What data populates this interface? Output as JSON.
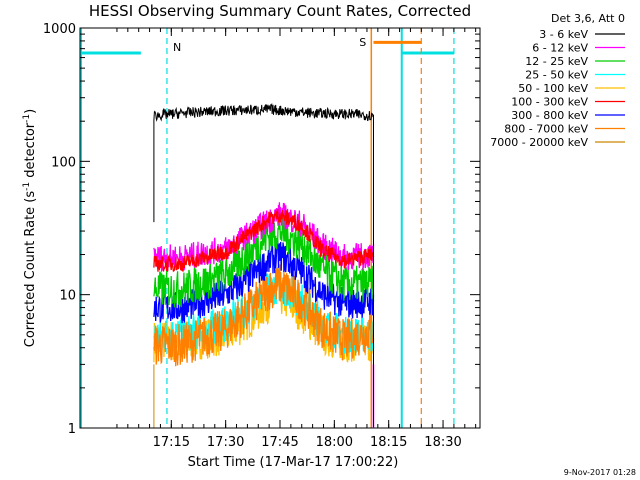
{
  "chart_data": {
    "type": "line",
    "title": "HESSI Observing Summary Count Rates, Corrected",
    "xlabel": "Start Time (17-Mar-17 17:00:22)",
    "ylabel_main": "Corrected Count Rate (s",
    "ylabel_sup1": "-1",
    "ylabel_mid": " detector",
    "ylabel_sup2": "-1",
    "ylabel_end": ")",
    "xlim": [
      16.83,
      18.67
    ],
    "ylim": [
      1,
      1000
    ],
    "yscale": "log",
    "x_ticks": [
      {
        "v": 17.25,
        "label": "17:15"
      },
      {
        "v": 17.5,
        "label": "17:30"
      },
      {
        "v": 17.75,
        "label": "17:45"
      },
      {
        "v": 18.0,
        "label": "18:00"
      },
      {
        "v": 18.25,
        "label": "18:15"
      },
      {
        "v": 18.5,
        "label": "18:30"
      }
    ],
    "y_ticks": [
      {
        "v": 1,
        "label": "1"
      },
      {
        "v": 10,
        "label": "10"
      },
      {
        "v": 100,
        "label": "100"
      },
      {
        "v": 1000,
        "label": "1000"
      }
    ],
    "legend_header": "Det 3,6, Att 0",
    "legend_position": "top-right",
    "series": [
      {
        "name": "3 - 6 keV",
        "color": "#000000",
        "x": [
          17.17,
          17.17,
          17.3,
          17.5,
          17.7,
          17.9,
          18.1,
          18.18
        ],
        "values": [
          35,
          220,
          230,
          240,
          245,
          230,
          225,
          220
        ],
        "noise": 0.04
      },
      {
        "name": "6 - 12 keV",
        "color": "#ff00ff",
        "x": [
          17.17,
          17.3,
          17.5,
          17.6,
          17.7,
          17.75,
          17.85,
          17.95,
          18.05,
          18.18
        ],
        "values": [
          19,
          19,
          22,
          28,
          36,
          40,
          34,
          23,
          19,
          20
        ],
        "noise": 0.1
      },
      {
        "name": "12 - 25 keV",
        "color": "#00cc00",
        "x": [
          17.17,
          17.3,
          17.5,
          17.6,
          17.7,
          17.75,
          17.85,
          17.95,
          18.05,
          18.18
        ],
        "values": [
          11,
          11,
          14,
          20,
          28,
          30,
          24,
          15,
          12,
          12
        ],
        "noise": 0.14
      },
      {
        "name": "25 - 50 keV",
        "color": "#00ffff",
        "x": [
          17.17,
          17.3,
          17.5,
          17.6,
          17.7,
          17.75,
          17.85,
          17.95,
          18.05,
          18.18
        ],
        "values": [
          5,
          5,
          6,
          8,
          11,
          12,
          9,
          6,
          5,
          5
        ],
        "noise": 0.14
      },
      {
        "name": "50 - 100 keV",
        "color": "#ffbf00",
        "x": [
          17.17,
          17.3,
          17.5,
          17.6,
          17.7,
          17.75,
          17.85,
          17.95,
          18.05,
          18.18
        ],
        "values": [
          4.5,
          4.5,
          5,
          6.5,
          9,
          10,
          7.5,
          5,
          4.5,
          4.5
        ],
        "noise": 0.16
      },
      {
        "name": "100 - 300 keV",
        "color": "#ff0000",
        "x": [
          17.17,
          17.3,
          17.5,
          17.6,
          17.7,
          17.75,
          17.85,
          17.95,
          18.05,
          18.18
        ],
        "values": [
          17,
          17,
          21,
          28,
          37,
          40,
          33,
          21,
          18,
          20
        ],
        "noise": 0.06
      },
      {
        "name": "300 - 800 keV",
        "color": "#0000ff",
        "x": [
          17.17,
          17.3,
          17.5,
          17.6,
          17.7,
          17.75,
          17.85,
          17.95,
          18.05,
          18.18
        ],
        "values": [
          8,
          8,
          10,
          13,
          18,
          20,
          15,
          10,
          8.5,
          9
        ],
        "noise": 0.12
      },
      {
        "name": "800 - 7000 keV",
        "color": "#ff8000",
        "x": [
          17.17,
          17.3,
          17.5,
          17.6,
          17.7,
          17.75,
          17.85,
          17.95,
          18.05,
          18.18
        ],
        "values": [
          4.2,
          4.2,
          5.5,
          7.5,
          11,
          12,
          9,
          5.5,
          4.5,
          5.5
        ],
        "noise": 0.16
      },
      {
        "name": "7000 - 20000 keV",
        "color": "#cc8800",
        "x": [],
        "values": [],
        "noise": 0
      }
    ],
    "annotations": [
      {
        "label": "N",
        "color": "#00e0e0"
      },
      {
        "label": "S",
        "color": "#ff8000"
      }
    ],
    "footer_date": "9-Nov-2017 01:28"
  }
}
